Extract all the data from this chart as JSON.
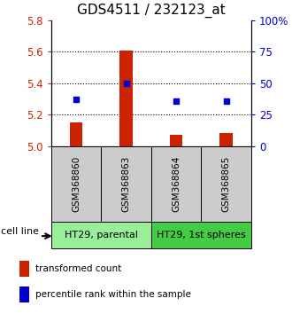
{
  "title": "GDS4511 / 232123_at",
  "samples": [
    "GSM368860",
    "GSM368863",
    "GSM368864",
    "GSM368865"
  ],
  "red_values": [
    5.15,
    5.61,
    5.07,
    5.08
  ],
  "blue_values_pct": [
    37,
    50,
    36,
    36
  ],
  "ylim_left": [
    5.0,
    5.8
  ],
  "yticks_left": [
    5.0,
    5.2,
    5.4,
    5.6,
    5.8
  ],
  "yticks_right": [
    0,
    25,
    50,
    75,
    100
  ],
  "ytick_right_labels": [
    "0",
    "25",
    "50",
    "75",
    "100%"
  ],
  "bar_color": "#cc2200",
  "dot_color": "#0000cc",
  "sample_bg_color": "#cccccc",
  "groups": [
    {
      "label": "HT29, parental",
      "samples": [
        0,
        1
      ],
      "color": "#99ee99"
    },
    {
      "label": "HT29, 1st spheres",
      "samples": [
        2,
        3
      ],
      "color": "#44cc44"
    }
  ],
  "cell_line_label": "cell line",
  "legend_red": "transformed count",
  "legend_blue": "percentile rank within the sample",
  "bar_width": 0.25,
  "bar_base": 5.0
}
